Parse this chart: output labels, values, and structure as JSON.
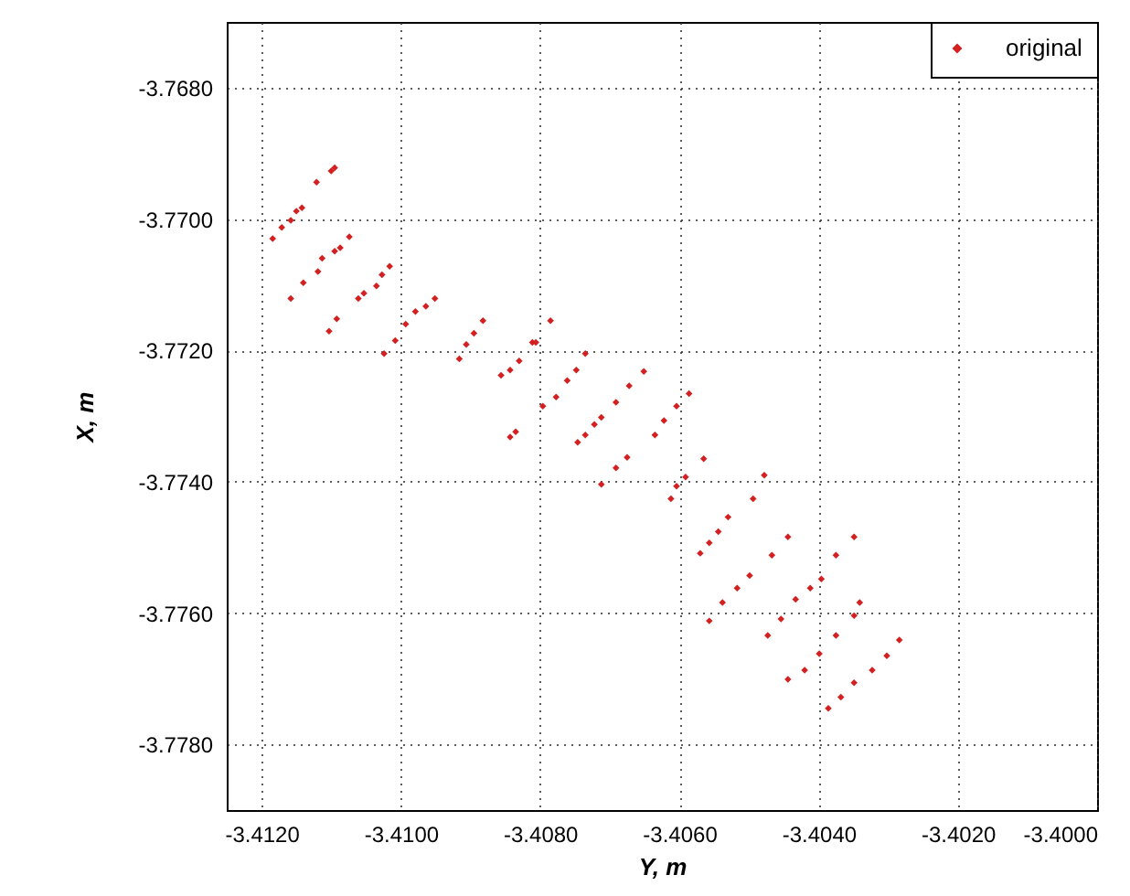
{
  "chart_data": {
    "type": "scatter",
    "xlabel": "Y, m",
    "ylabel": "X, m",
    "grid": true,
    "legend": "top right",
    "marker": "diamond",
    "xlim": [
      -3.4125,
      -3.4
    ],
    "ylim": [
      -3.779,
      -3.767
    ],
    "xticks": [
      {
        "value": -3.412,
        "label": "-3.4120"
      },
      {
        "value": -3.41,
        "label": "-3.4100"
      },
      {
        "value": -3.408,
        "label": "-3.4080"
      },
      {
        "value": -3.406,
        "label": "-3.4060"
      },
      {
        "value": -3.404,
        "label": "-3.4040"
      },
      {
        "value": -3.402,
        "label": "-3.4020"
      },
      {
        "value": -3.4,
        "label": "-3.4000"
      }
    ],
    "yticks": [
      {
        "value": -3.778,
        "label": "-3.7780"
      },
      {
        "value": -3.776,
        "label": "-3.7760"
      },
      {
        "value": -3.774,
        "label": "-3.7740"
      },
      {
        "value": -3.772,
        "label": "-3.7720"
      },
      {
        "value": -3.77,
        "label": "-3.7700"
      },
      {
        "value": -3.768,
        "label": "-3.7680"
      }
    ],
    "series": [
      {
        "name": "original",
        "color": "#d42020",
        "x": [
          -3.41184,
          -3.41171,
          -3.41158,
          -3.4115,
          -3.41142,
          -3.41121,
          -3.411,
          -3.41095,
          -3.41158,
          -3.4114,
          -3.41119,
          -3.41113,
          -3.41095,
          -3.41087,
          -3.41074,
          -3.41103,
          -3.41092,
          -3.41061,
          -3.41053,
          -3.41035,
          -3.41027,
          -3.41016,
          -3.41024,
          -3.41008,
          -3.40993,
          -3.40979,
          -3.40964,
          -3.40951,
          -3.40916,
          -3.40906,
          -3.40895,
          -3.40882,
          -3.40856,
          -3.40843,
          -3.4083,
          -3.40811,
          -3.40843,
          -3.40835,
          -3.40785,
          -3.40806,
          -3.40796,
          -3.40777,
          -3.40761,
          -3.40748,
          -3.40735,
          -3.40746,
          -3.40735,
          -3.40722,
          -3.40712,
          -3.40691,
          -3.40672,
          -3.40651,
          -3.40712,
          -3.40691,
          -3.40675,
          -3.40635,
          -3.40622,
          -3.40604,
          -3.40586,
          -3.40612,
          -3.40604,
          -3.40591,
          -3.40565,
          -3.4057,
          -3.40557,
          -3.40544,
          -3.4053,
          -3.40494,
          -3.40478,
          -3.40467,
          -3.40444,
          -3.40557,
          -3.40538,
          -3.40517,
          -3.40499,
          -3.40473,
          -3.40454,
          -3.40433,
          -3.40412,
          -3.40396,
          -3.40375,
          -3.40349,
          -3.40444,
          -3.4042,
          -3.40399,
          -3.40375,
          -3.40386,
          -3.40368,
          -3.40349,
          -3.40349,
          -3.40341,
          -3.40323,
          -3.40302,
          -3.40284
        ],
        "values": [
          -3.7703,
          -3.77013,
          -3.77002,
          -3.76988,
          -3.76983,
          -3.76944,
          -3.76927,
          -3.76922,
          -3.77121,
          -3.77097,
          -3.7708,
          -3.7706,
          -3.77049,
          -3.77044,
          -3.77027,
          -3.77171,
          -3.77152,
          -3.77121,
          -3.77113,
          -3.77102,
          -3.77085,
          -3.77072,
          -3.77205,
          -3.77185,
          -3.7716,
          -3.77141,
          -3.77133,
          -3.77121,
          -3.77213,
          -3.77191,
          -3.77174,
          -3.77155,
          -3.77238,
          -3.7723,
          -3.77216,
          -3.77188,
          -3.77332,
          -3.77324,
          -3.77155,
          -3.77188,
          -3.77285,
          -3.77271,
          -3.77246,
          -3.7723,
          -3.77205,
          -3.7734,
          -3.77329,
          -3.77313,
          -3.77302,
          -3.77279,
          -3.77254,
          -3.77232,
          -3.77404,
          -3.77379,
          -3.77363,
          -3.77329,
          -3.77307,
          -3.77285,
          -3.77266,
          -3.77426,
          -3.77407,
          -3.77393,
          -3.77365,
          -3.77509,
          -3.77493,
          -3.77476,
          -3.77454,
          -3.77426,
          -3.7739,
          -3.77512,
          -3.77484,
          -3.77612,
          -3.77584,
          -3.77562,
          -3.77543,
          -3.77634,
          -3.77609,
          -3.77579,
          -3.77562,
          -3.77548,
          -3.77512,
          -3.77484,
          -3.77701,
          -3.77687,
          -3.77662,
          -3.77634,
          -3.77745,
          -3.77728,
          -3.77706,
          -3.77604,
          -3.77584,
          -3.77687,
          -3.77665,
          -3.77641
        ]
      }
    ]
  }
}
